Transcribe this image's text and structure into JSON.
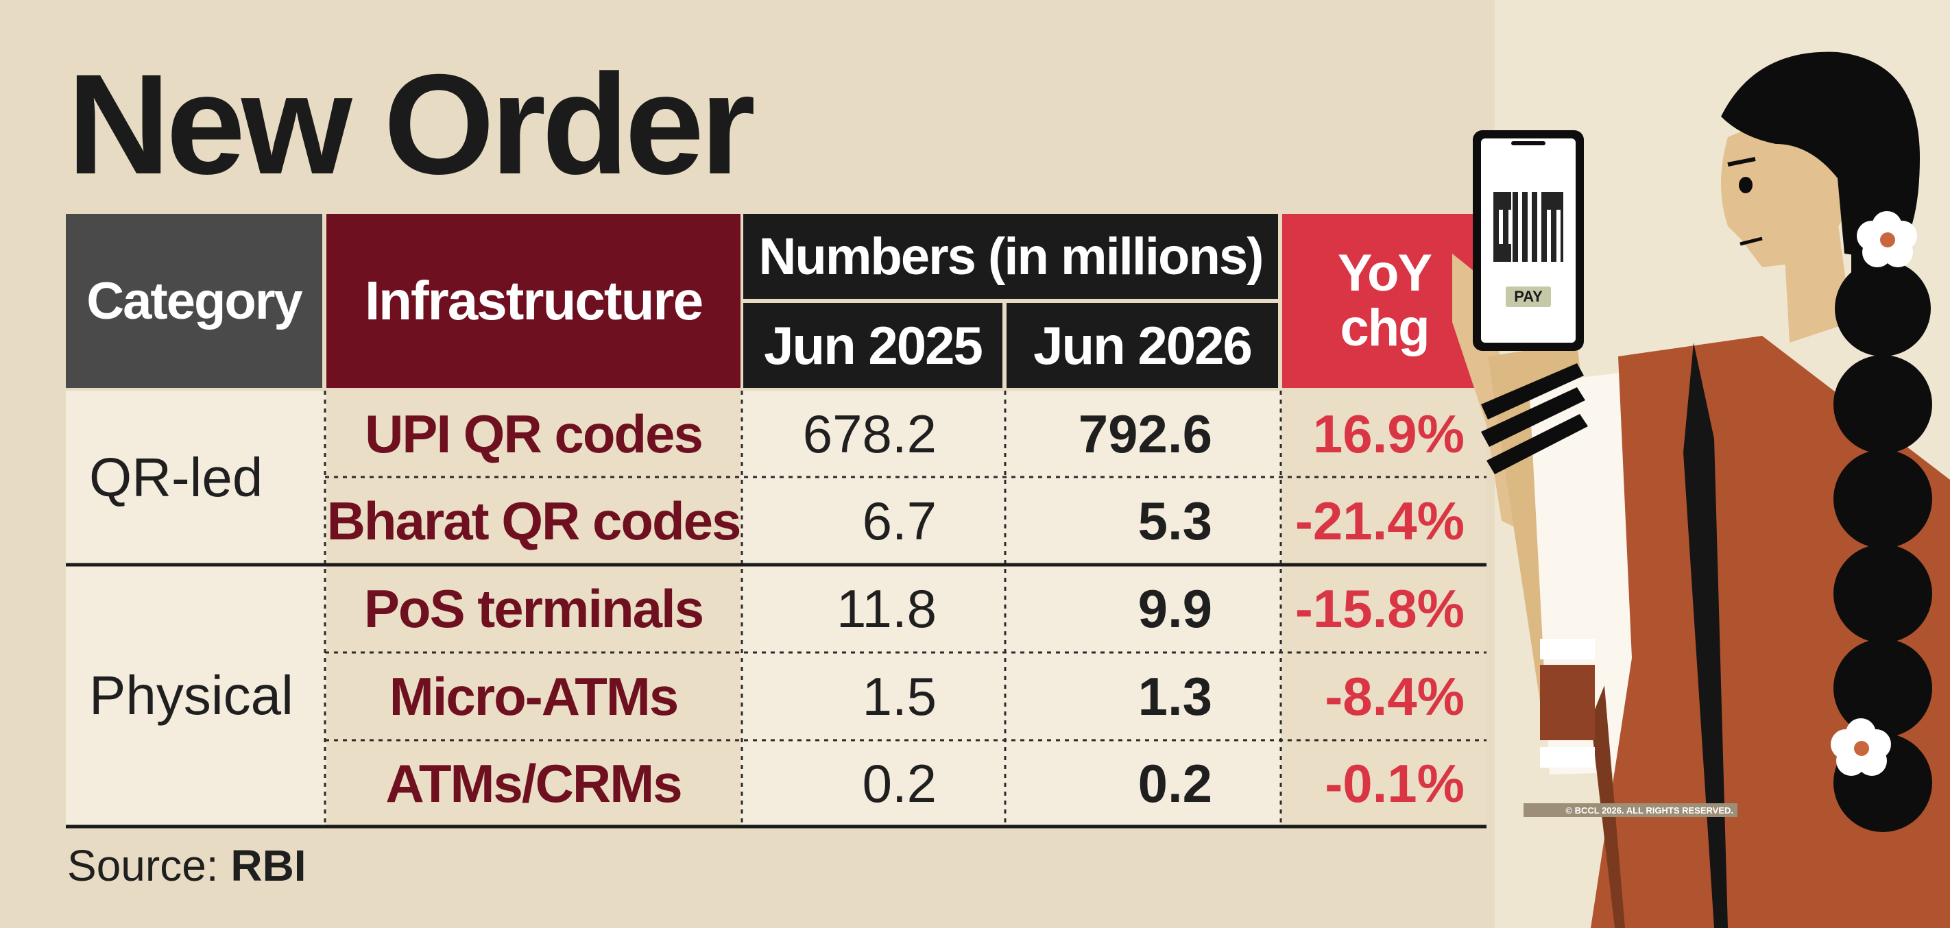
{
  "title": "New Order",
  "table": {
    "headers": {
      "category": "Category",
      "infrastructure": "Infrastructure",
      "numbers": "Numbers (in millions)",
      "jun2025": "Jun 2025",
      "jun2026": "Jun 2026",
      "yoy_line1": "YoY",
      "yoy_line2": "chg"
    },
    "groups": [
      {
        "category": "QR-led"
      },
      {
        "category": "Physical"
      }
    ],
    "rows": [
      {
        "category": "QR-led",
        "infrastructure": "UPI QR codes",
        "jun2025": "678.2",
        "jun2026": "792.6",
        "yoy": "16.9%"
      },
      {
        "category": "QR-led",
        "infrastructure": "Bharat QR codes",
        "jun2025": "6.7",
        "jun2026": "5.3",
        "yoy": "-21.4%"
      },
      {
        "category": "Physical",
        "infrastructure": "PoS terminals",
        "jun2025": "11.8",
        "jun2026": "9.9",
        "yoy": "-15.8%"
      },
      {
        "category": "Physical",
        "infrastructure": "Micro-ATMs",
        "jun2025": "1.5",
        "jun2026": "1.3",
        "yoy": "-8.4%"
      },
      {
        "category": "Physical",
        "infrastructure": "ATMs/CRMs",
        "jun2025": "0.2",
        "jun2026": "0.2",
        "yoy": "-0.1%"
      }
    ]
  },
  "chart_data": {
    "type": "table",
    "title": "New Order",
    "columns": [
      "Category",
      "Infrastructure",
      "Jun 2025",
      "Jun 2026",
      "YoY chg"
    ],
    "units": "Numbers (in millions)",
    "rows": [
      [
        "QR-led",
        "UPI QR codes",
        678.2,
        792.6,
        "16.9%"
      ],
      [
        "QR-led",
        "Bharat QR codes",
        6.7,
        5.3,
        "-21.4%"
      ],
      [
        "Physical",
        "PoS terminals",
        11.8,
        9.9,
        "-15.8%"
      ],
      [
        "Physical",
        "Micro-ATMs",
        1.5,
        1.3,
        "-8.4%"
      ],
      [
        "Physical",
        "ATMs/CRMs",
        0.2,
        0.2,
        "-0.1%"
      ]
    ]
  },
  "source": {
    "label": "Source:",
    "value": "RBI"
  },
  "illustration": {
    "phone_button": "PAY",
    "phone_icon": "qr-code-icon"
  },
  "copyright": "© BCCL 2026. ALL RIGHTS RESERVED.",
  "colors": {
    "background": "#e7dcc3",
    "category_header": "#4a4a4a",
    "infrastructure_header": "#6e1020",
    "numbers_header": "#1b1b1b",
    "yoy_header": "#d93545",
    "infrastructure_text": "#6e1020",
    "yoy_text": "#d93545"
  }
}
